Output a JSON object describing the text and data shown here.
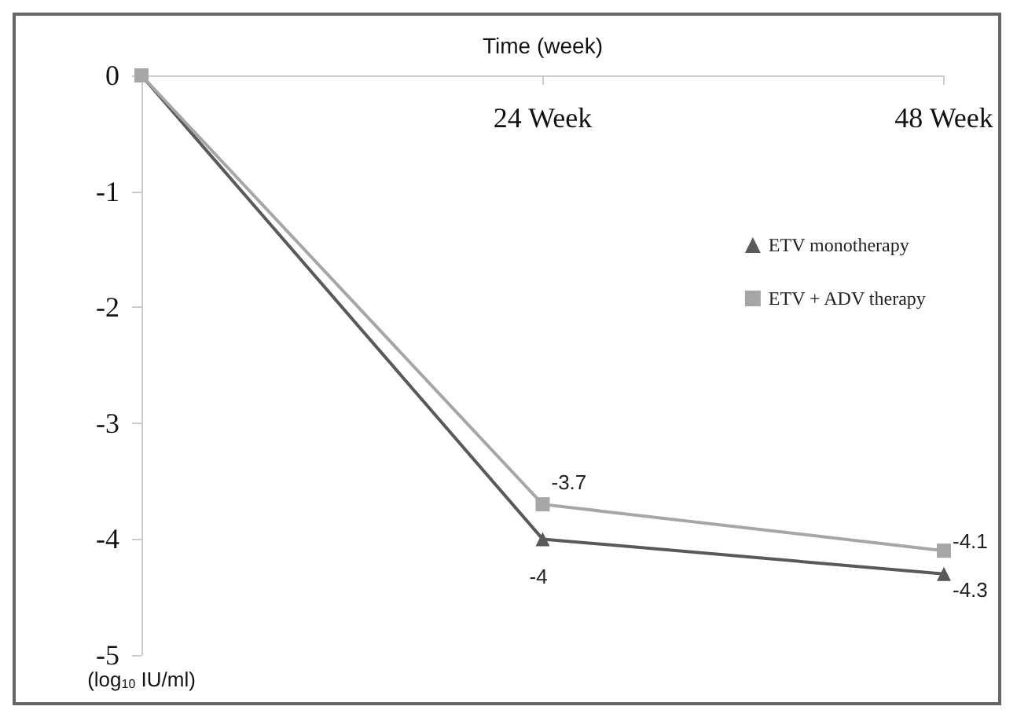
{
  "chart_data": {
    "type": "line",
    "xlabel": "Time (week)",
    "ylabel": "(log$_{10}$ IU/ml)",
    "categories": [
      null,
      "24 Week",
      "48 Week"
    ],
    "series": [
      {
        "name": "ETV monotherapy",
        "color": "#595959",
        "marker": "triangle",
        "values": [
          0,
          -4,
          -4.3
        ],
        "value_labels": [
          null,
          "-4",
          "-4.3"
        ]
      },
      {
        "name": "ETV + ADV therapy",
        "color": "#a6a6a6",
        "marker": "square",
        "values": [
          0,
          -3.7,
          -4.1
        ],
        "value_labels": [
          null,
          "-3.7",
          "-4.1"
        ]
      }
    ],
    "ylim": [
      -5,
      0
    ],
    "yticks": [
      0,
      -1,
      -2,
      -3,
      -4,
      -5
    ],
    "grid": false,
    "legend": "right",
    "line_style": "solid"
  }
}
